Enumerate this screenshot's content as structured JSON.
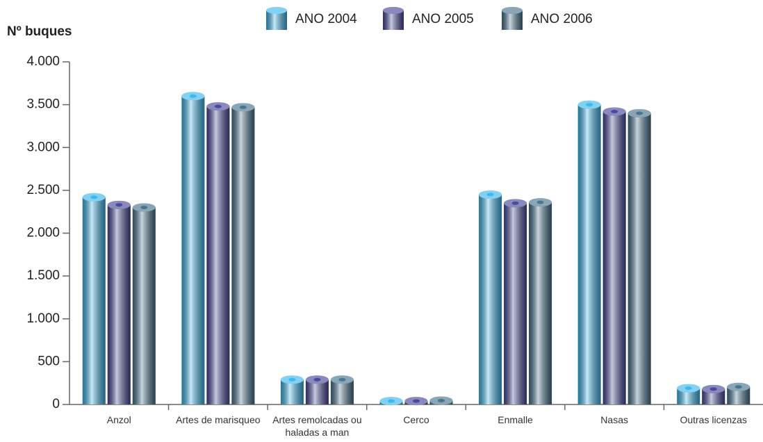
{
  "chart_data": {
    "type": "bar",
    "y_label": "Nº buques",
    "categories": [
      "Anzol",
      "Artes de marisqueo",
      "Artes remolcadas ou haladas a man",
      "Cerco",
      "Enmalle",
      "Nasas",
      "Outras licenzas"
    ],
    "series": [
      {
        "name": "ANO 2004",
        "color": "#3fb8ec",
        "values": [
          2420,
          3600,
          290,
          40,
          2450,
          3500,
          190
        ]
      },
      {
        "name": "ANO 2005",
        "color": "#4a4a9c",
        "values": [
          2330,
          3480,
          290,
          40,
          2350,
          3420,
          180
        ]
      },
      {
        "name": "ANO 2006",
        "color": "#4a7590",
        "values": [
          2300,
          3470,
          290,
          45,
          2360,
          3400,
          205
        ]
      }
    ],
    "ylim": [
      0,
      4000
    ],
    "yticks": [
      0,
      500,
      {
        "value": 1000,
        "label": "1.000"
      },
      {
        "value": 1500,
        "label": "1.500"
      },
      {
        "value": 2000,
        "label": "2.000"
      },
      {
        "value": 2500,
        "label": "2.500"
      },
      {
        "value": 3000,
        "label": "3.000"
      },
      {
        "value": 3500,
        "label": "3.500"
      },
      {
        "value": 4000,
        "label": "4.000"
      }
    ]
  }
}
